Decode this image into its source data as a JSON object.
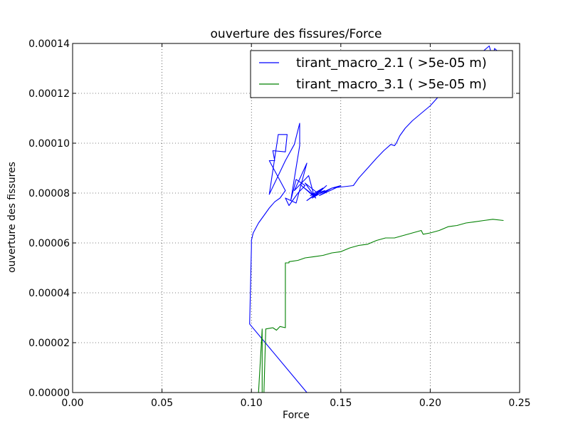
{
  "chart_data": {
    "type": "line",
    "title": "ouverture des fissures/Force",
    "xlabel": "Force",
    "ylabel": "ouverture des fissures",
    "xlim": [
      0.0,
      0.25
    ],
    "ylim": [
      0.0,
      0.00014
    ],
    "xticks": [
      "0.00",
      "0.05",
      "0.10",
      "0.15",
      "0.20",
      "0.25"
    ],
    "yticks": [
      "0.00000",
      "0.00002",
      "0.00004",
      "0.00006",
      "0.00008",
      "0.00010",
      "0.00012",
      "0.00014"
    ],
    "grid": true,
    "legend_position": "top-right",
    "series": [
      {
        "name": "tirant_macro_2.1 ( >5e-05 m)",
        "color": "#0000ff",
        "x": [
          0.131,
          0.099,
          0.1,
          0.1,
          0.101,
          0.104,
          0.107,
          0.11,
          0.113,
          0.116,
          0.119,
          0.11,
          0.113,
          0.112,
          0.119,
          0.12,
          0.115,
          0.11,
          0.119,
          0.124,
          0.127,
          0.127,
          0.122,
          0.125,
          0.13,
          0.126,
          0.121,
          0.119,
          0.125,
          0.131,
          0.124,
          0.132,
          0.135,
          0.128,
          0.136,
          0.13,
          0.137,
          0.131,
          0.14,
          0.133,
          0.141,
          0.134,
          0.142,
          0.136,
          0.145,
          0.138,
          0.15,
          0.145,
          0.157,
          0.16,
          0.165,
          0.17,
          0.174,
          0.178,
          0.18,
          0.181,
          0.183,
          0.186,
          0.19,
          0.195,
          0.2,
          0.205,
          0.21,
          0.215,
          0.22,
          0.225,
          0.229,
          0.233,
          0.235,
          0.236,
          0.239,
          0.241
        ],
        "y": [
          0.0,
          2.75e-05,
          5.8e-05,
          6.1e-05,
          6.4e-05,
          6.8e-05,
          7.1e-05,
          7.4e-05,
          7.65e-05,
          7.8e-05,
          8.1e-05,
          9.3e-05,
          9.3e-05,
          9.7e-05,
          9.65e-05,
          0.0001035,
          0.0001035,
          7.95e-05,
          9.3e-05,
          9.95e-05,
          0.000108,
          9.9e-05,
          7.7e-05,
          8.55e-05,
          8.3e-05,
          8e-05,
          7.5e-05,
          7.8e-05,
          7.6e-05,
          9.2e-05,
          8.1e-05,
          8.7e-05,
          7.9e-05,
          8.3e-05,
          7.8e-05,
          8.4e-05,
          8e-05,
          7.7e-05,
          8.2e-05,
          7.9e-05,
          8.1e-05,
          7.8e-05,
          8.3e-05,
          7.9e-05,
          8.2e-05,
          7.9e-05,
          8.3e-05,
          8.2e-05,
          8.3e-05,
          8.6e-05,
          9e-05,
          9.4e-05,
          9.7e-05,
          9.95e-05,
          9.9e-05,
          0.0001,
          0.000103,
          0.000106,
          0.000109,
          0.000112,
          0.000115,
          0.000119,
          0.000123,
          0.000127,
          0.00013,
          0.000134,
          0.0001365,
          0.000139,
          0.000134,
          0.000138,
          0.000136,
          0.000137
        ]
      },
      {
        "name": "tirant_macro_3.1 ( >5e-05 m)",
        "color": "#008000",
        "x": [
          0.104,
          0.106,
          0.106,
          0.107,
          0.108,
          0.108,
          0.112,
          0.114,
          0.116,
          0.119,
          0.119,
          0.121,
          0.121,
          0.126,
          0.13,
          0.135,
          0.14,
          0.145,
          0.15,
          0.155,
          0.16,
          0.165,
          0.17,
          0.175,
          0.18,
          0.185,
          0.19,
          0.195,
          0.196,
          0.2,
          0.205,
          0.21,
          0.215,
          0.22,
          0.225,
          0.23,
          0.235,
          0.241
        ],
        "y": [
          0.0,
          2.55e-05,
          0.0,
          0.0,
          2.5e-05,
          2.55e-05,
          2.6e-05,
          2.5e-05,
          2.65e-05,
          2.6e-05,
          5.2e-05,
          5.2e-05,
          5.25e-05,
          5.3e-05,
          5.4e-05,
          5.45e-05,
          5.5e-05,
          5.6e-05,
          5.65e-05,
          5.8e-05,
          5.9e-05,
          5.95e-05,
          6.1e-05,
          6.2e-05,
          6.2e-05,
          6.3e-05,
          6.4e-05,
          6.5e-05,
          6.35e-05,
          6.4e-05,
          6.5e-05,
          6.65e-05,
          6.7e-05,
          6.8e-05,
          6.85e-05,
          6.9e-05,
          6.95e-05,
          6.9e-05
        ]
      }
    ]
  }
}
